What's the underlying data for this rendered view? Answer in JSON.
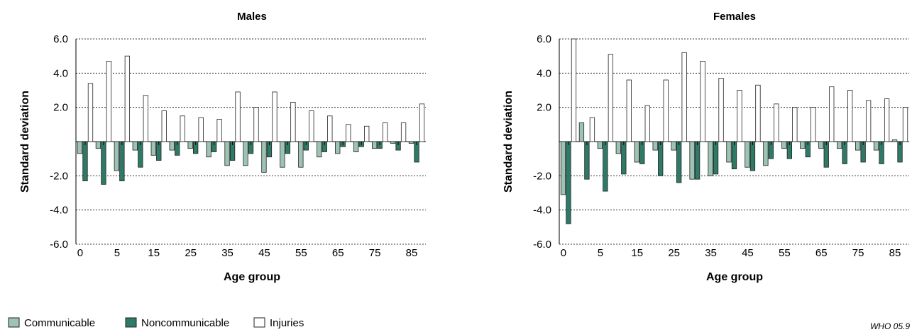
{
  "chart_data": [
    {
      "type": "bar",
      "title": "Males",
      "xlabel": "Age group",
      "ylabel": "Standard deviation",
      "ylim": [
        -6,
        6
      ],
      "yticks": [
        "6.0",
        "4.0",
        "2.0",
        "-2.0",
        "-4.0",
        "-6.0"
      ],
      "ytick_values": [
        6,
        4,
        2,
        -2,
        -4,
        -6
      ],
      "grid": "horizontal-dashed",
      "categories": [
        "0",
        "1",
        "5",
        "10",
        "15",
        "20",
        "25",
        "30",
        "35",
        "40",
        "45",
        "50",
        "55",
        "60",
        "65",
        "70",
        "75",
        "80",
        "85"
      ],
      "xtick_labels": [
        "0",
        "",
        "5",
        "",
        "15",
        "",
        "25",
        "",
        "35",
        "",
        "45",
        "",
        "55",
        "",
        "65",
        "",
        "75",
        "",
        "85"
      ],
      "series": [
        {
          "name": "Communicable",
          "values": [
            -0.7,
            -0.4,
            -1.7,
            -0.5,
            -0.8,
            -0.5,
            -0.4,
            -0.9,
            -1.4,
            -1.4,
            -1.8,
            -1.5,
            -1.5,
            -0.9,
            -0.7,
            -0.6,
            -0.4,
            -0.1,
            -0.1
          ]
        },
        {
          "name": "Noncommunicable",
          "values": [
            -2.3,
            -2.5,
            -2.3,
            -1.5,
            -1.1,
            -0.8,
            -0.7,
            -0.6,
            -1.1,
            -0.7,
            -0.9,
            -0.7,
            -0.5,
            -0.6,
            -0.3,
            -0.3,
            -0.4,
            -0.5,
            -1.2
          ]
        },
        {
          "name": "Injuries",
          "values": [
            3.4,
            4.7,
            5.0,
            2.7,
            1.8,
            1.5,
            1.4,
            1.3,
            2.9,
            2.0,
            2.9,
            2.3,
            1.8,
            1.5,
            1.0,
            0.9,
            1.1,
            1.1,
            2.2
          ]
        }
      ]
    },
    {
      "type": "bar",
      "title": "Females",
      "xlabel": "Age group",
      "ylabel": "Standard deviation",
      "ylim": [
        -6,
        6
      ],
      "yticks": [
        "6.0",
        "4.0",
        "2.0",
        "-2.0",
        "-4.0",
        "-6.0"
      ],
      "ytick_values": [
        6,
        4,
        2,
        -2,
        -4,
        -6
      ],
      "grid": "horizontal-dashed",
      "categories": [
        "0",
        "1",
        "5",
        "10",
        "15",
        "20",
        "25",
        "30",
        "35",
        "40",
        "45",
        "50",
        "55",
        "60",
        "65",
        "70",
        "75",
        "80",
        "85"
      ],
      "xtick_labels": [
        "0",
        "",
        "5",
        "",
        "15",
        "",
        "25",
        "",
        "35",
        "",
        "45",
        "",
        "55",
        "",
        "65",
        "",
        "75",
        "",
        "85"
      ],
      "series": [
        {
          "name": "Communicable",
          "values": [
            -3.1,
            1.1,
            -0.4,
            -0.7,
            -1.2,
            -0.5,
            -0.5,
            -2.2,
            -2.0,
            -1.2,
            -1.5,
            -1.4,
            -0.4,
            -0.4,
            -0.4,
            -0.4,
            -0.5,
            -0.5,
            0.1
          ]
        },
        {
          "name": "Noncommunicable",
          "values": [
            -4.8,
            -2.2,
            -2.9,
            -1.9,
            -1.3,
            -2.0,
            -2.4,
            -2.2,
            -1.9,
            -1.6,
            -1.7,
            -1.0,
            -1.0,
            -0.9,
            -1.5,
            -1.3,
            -1.2,
            -1.3,
            -1.2
          ]
        },
        {
          "name": "Injuries",
          "values": [
            6.0,
            1.4,
            5.1,
            3.6,
            2.1,
            3.6,
            5.2,
            4.7,
            3.7,
            3.0,
            3.3,
            2.2,
            2.0,
            2.0,
            3.2,
            3.0,
            2.4,
            2.5,
            2.0
          ]
        }
      ]
    }
  ],
  "legend": {
    "items": [
      {
        "label": "Communicable",
        "color": "#9cc3b3"
      },
      {
        "label": "Noncommunicable",
        "color": "#2e7a66"
      },
      {
        "label": "Injuries",
        "color": "#ffffff"
      }
    ]
  },
  "credit": "WHO 05.9",
  "colors": {
    "communicable": "#9cc3b3",
    "noncommunicable": "#2e7a66",
    "injuries": "#ffffff",
    "bar_stroke": "#222222"
  }
}
